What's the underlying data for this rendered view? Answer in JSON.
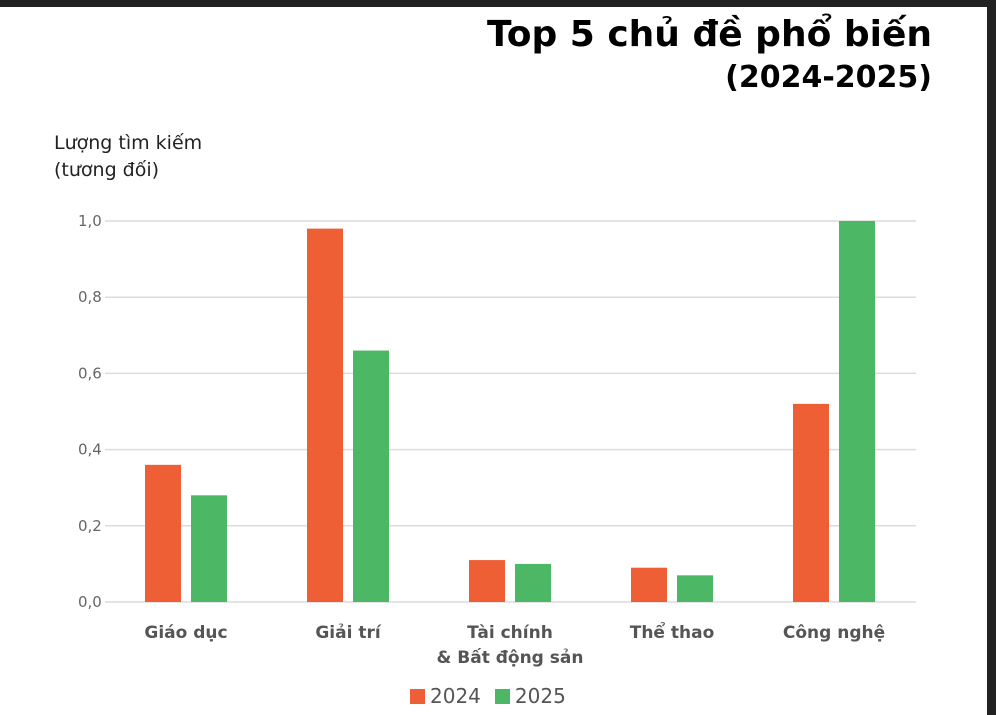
{
  "title": "Top 5 chủ đề phổ biến",
  "subtitle": "(2024-2025)",
  "chart_data": {
    "type": "bar",
    "ylabel_line1": "Lượng tìm kiếm",
    "ylabel_line2": "(tương đối)",
    "xlabel": "",
    "ylim": [
      0,
      1.0
    ],
    "yticks": [
      "0,0",
      "0,2",
      "0,4",
      "0,6",
      "0,8",
      "1,0"
    ],
    "grid": true,
    "legend_position": "bottom",
    "categories": [
      [
        "Giáo dục"
      ],
      [
        "Giải trí"
      ],
      [
        "Tài chính",
        "& Bất động sản"
      ],
      [
        "Thể thao"
      ],
      [
        "Công nghệ"
      ]
    ],
    "series": [
      {
        "name": "2024",
        "color": "#ee5f35",
        "values": [
          0.36,
          0.98,
          0.11,
          0.09,
          0.52
        ]
      },
      {
        "name": "2025",
        "color": "#4cb865",
        "values": [
          0.28,
          0.66,
          0.1,
          0.07,
          1.0
        ]
      }
    ]
  }
}
